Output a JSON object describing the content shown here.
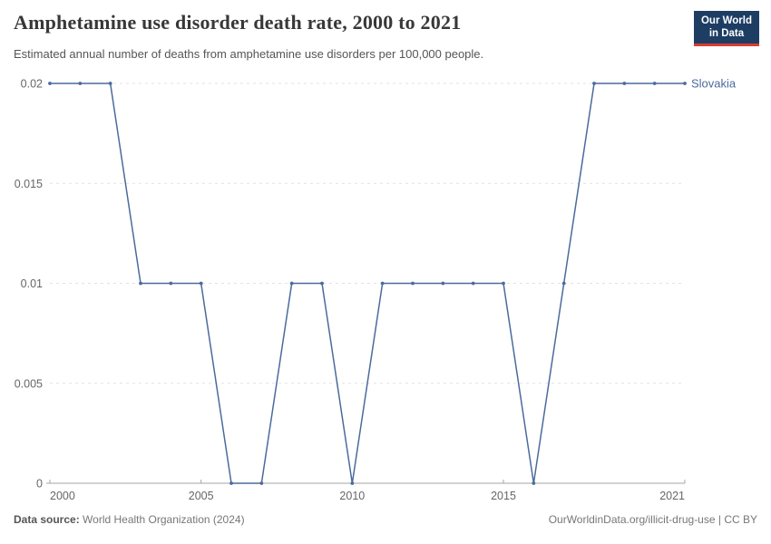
{
  "header": {
    "title": "Amphetamine use disorder death rate, 2000 to 2021",
    "subtitle": "Estimated annual number of deaths from amphetamine use disorders per 100,000 people."
  },
  "logo": {
    "line1": "Our World",
    "line2": "in Data"
  },
  "chart_data": {
    "type": "line",
    "title": "Amphetamine use disorder death rate, 2000 to 2021",
    "subtitle": "Estimated annual number of deaths from amphetamine use disorders per 100,000 people.",
    "x": [
      2000,
      2001,
      2002,
      2003,
      2004,
      2005,
      2006,
      2007,
      2008,
      2009,
      2010,
      2011,
      2012,
      2013,
      2014,
      2015,
      2016,
      2017,
      2018,
      2019,
      2020,
      2021
    ],
    "series": [
      {
        "name": "Slovakia",
        "color": "#4C6A9C",
        "values": [
          0.02,
          0.02,
          0.02,
          0.01,
          0.01,
          0.01,
          0,
          0,
          0.01,
          0.01,
          0,
          0.01,
          0.01,
          0.01,
          0.01,
          0.01,
          0,
          0.01,
          0.02,
          0.02,
          0.02,
          0.02
        ]
      }
    ],
    "xlabel": "",
    "ylabel": "",
    "ylim": [
      0,
      0.02
    ],
    "yticks": [
      0,
      0.005,
      0.01,
      0.015,
      0.02
    ],
    "ytick_labels": [
      "0",
      "0.005",
      "0.01",
      "0.015",
      "0.02"
    ],
    "xticks": [
      2000,
      2005,
      2010,
      2015,
      2021
    ],
    "xtick_labels": [
      "2000",
      "2005",
      "2010",
      "2015",
      "2021"
    ],
    "grid": "horizontal-dashed",
    "legend_position": "end-of-line"
  },
  "colors": {
    "line": "#4C6A9C",
    "grid": "#e2e2e2",
    "axis": "#a5a5a5",
    "tick_label": "#666666"
  },
  "footer": {
    "source_label": "Data source:",
    "source_value": " World Health Organization (2024)",
    "link": "OurWorldinData.org/illicit-drug-use | CC BY"
  }
}
